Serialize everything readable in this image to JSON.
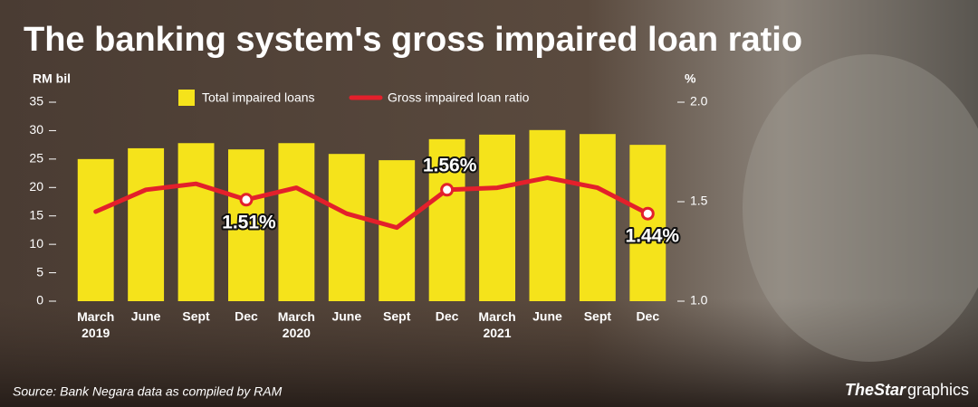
{
  "chart_data": {
    "type": "bar-line",
    "title": "The banking system's gross impaired loan ratio",
    "y_label": "RM bil",
    "y2_label": "%",
    "categories": [
      "March 2019",
      "June",
      "Sept",
      "Dec",
      "March 2020",
      "June",
      "Sept",
      "Dec",
      "March 2021",
      "June",
      "Sept",
      "Dec"
    ],
    "series": [
      {
        "name": "Total impaired loans",
        "type": "bar",
        "color": "#f5e31b",
        "values": [
          25.0,
          26.9,
          27.8,
          26.7,
          27.8,
          25.9,
          24.8,
          28.5,
          29.3,
          30.1,
          29.4,
          27.5
        ]
      },
      {
        "name": "Gross impaired loan ratio",
        "type": "line",
        "axis": "y2",
        "color": "#e3202b",
        "values": [
          1.45,
          1.56,
          1.59,
          1.51,
          1.57,
          1.44,
          1.37,
          1.56,
          1.57,
          1.62,
          1.57,
          1.44
        ],
        "value_labels": [
          null,
          null,
          null,
          "1.51%",
          null,
          null,
          null,
          "1.56%",
          null,
          null,
          null,
          "1.44%"
        ]
      }
    ],
    "ylim": [
      0,
      35
    ],
    "yticks": [
      0,
      5,
      10,
      15,
      20,
      25,
      30,
      35
    ],
    "y2lim": [
      1.0,
      2.0
    ],
    "y2ticks": [
      {
        "value": 1.0,
        "label": "1.0"
      },
      {
        "value": 1.5,
        "label": "1.5"
      },
      {
        "value": 2.0,
        "label": "2.0"
      }
    ],
    "source": "Source: Bank Negara data as compiled by RAM",
    "credit_name": "TheStar",
    "credit_suffix": "graphics"
  }
}
